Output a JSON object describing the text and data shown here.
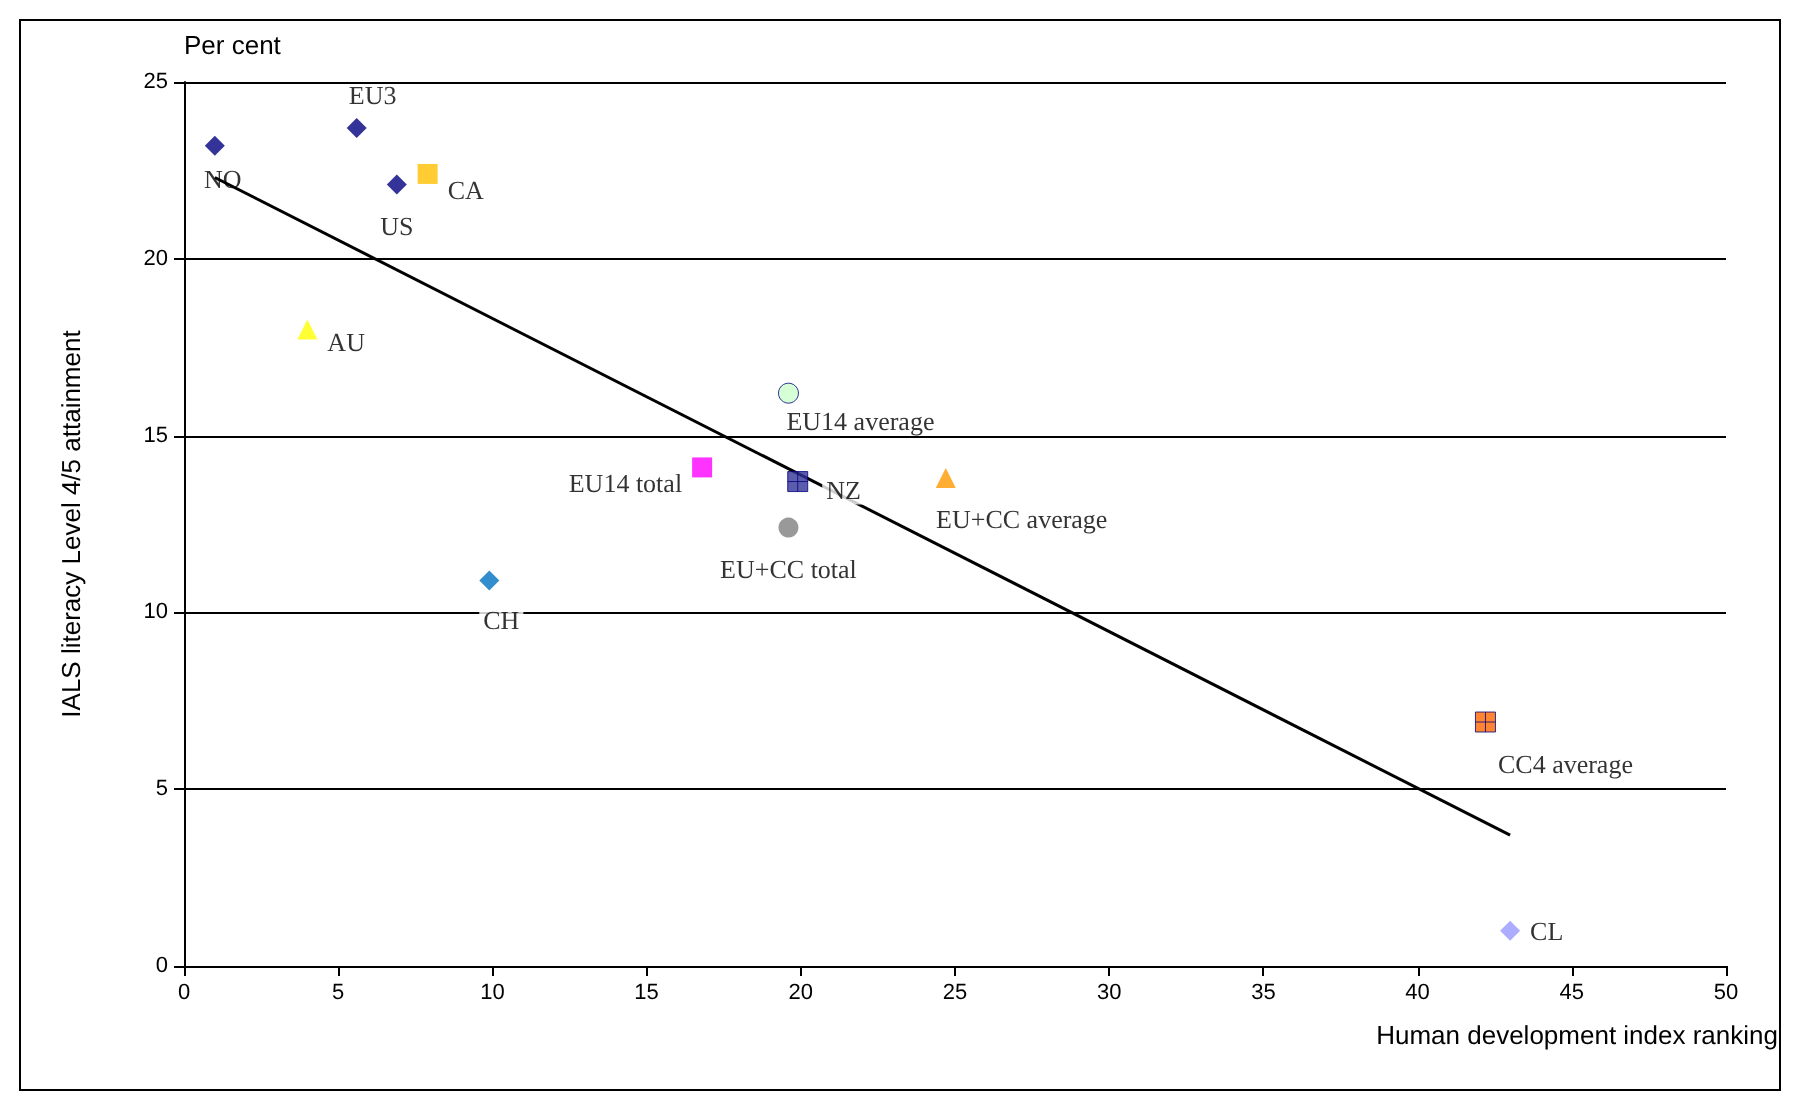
{
  "chart_data": {
    "type": "scatter",
    "ylabel": "IALS literacy Level 4/5 attainment",
    "xlabel": "Human development index ranking",
    "annotations": [
      "Per cent"
    ],
    "xlim": [
      0,
      50
    ],
    "xticks": [
      0,
      5,
      10,
      15,
      20,
      25,
      30,
      35,
      40,
      45,
      50
    ],
    "ylim": [
      0,
      25
    ],
    "yticks": [
      0,
      5,
      10,
      15,
      20,
      25
    ],
    "grid": "y",
    "legend": false,
    "series": [
      {
        "name": "NO",
        "color": "#000080",
        "marker": "diamond",
        "x": [
          1
        ],
        "values": [
          23.2
        ]
      },
      {
        "name": "EU3",
        "color": "#000080",
        "marker": "diamond",
        "x": [
          5.6
        ],
        "values": [
          23.7
        ]
      },
      {
        "name": "US",
        "color": "#000080",
        "marker": "diamond",
        "x": [
          6.9
        ],
        "values": [
          22.1
        ]
      },
      {
        "name": "CA",
        "color": "#ffc000",
        "marker": "square",
        "x": [
          7.9
        ],
        "values": [
          22.4
        ]
      },
      {
        "name": "AU",
        "color": "#ffff00",
        "marker": "triangle",
        "x": [
          4
        ],
        "values": [
          18
        ]
      },
      {
        "name": "CH",
        "color": "#0070c0",
        "marker": "diamond",
        "x": [
          9.9
        ],
        "values": [
          10.9
        ]
      },
      {
        "name": "EU14 total",
        "color": "#ff00ff",
        "marker": "square",
        "x": [
          16.8
        ],
        "values": [
          14.1
        ]
      },
      {
        "name": "EU14 average",
        "color": "#ccffcc",
        "marker": "circle",
        "x": [
          19.6
        ],
        "values": [
          16.2
        ]
      },
      {
        "name": "NZ",
        "color": "#333399",
        "marker": "cross",
        "x": [
          19.9
        ],
        "values": [
          13.7
        ]
      },
      {
        "name": "EU+CC total",
        "color": "#808080",
        "marker": "circle",
        "x": [
          19.6
        ],
        "values": [
          12.4
        ]
      },
      {
        "name": "EU+CC average",
        "color": "#ff9900",
        "marker": "triangle",
        "x": [
          24.7
        ],
        "values": [
          13.8
        ]
      },
      {
        "name": "CC4 average",
        "color": "#ff6600",
        "marker": "cross",
        "x": [
          42.2
        ],
        "values": [
          6.9
        ]
      },
      {
        "name": "CL",
        "color": "#9999ff",
        "marker": "diamond",
        "x": [
          43
        ],
        "values": [
          1
        ]
      },
      {
        "type": "line",
        "color": "#000000",
        "marker": "none",
        "x": [
          1,
          43
        ],
        "values": [
          22.3,
          3.7
        ]
      }
    ]
  }
}
